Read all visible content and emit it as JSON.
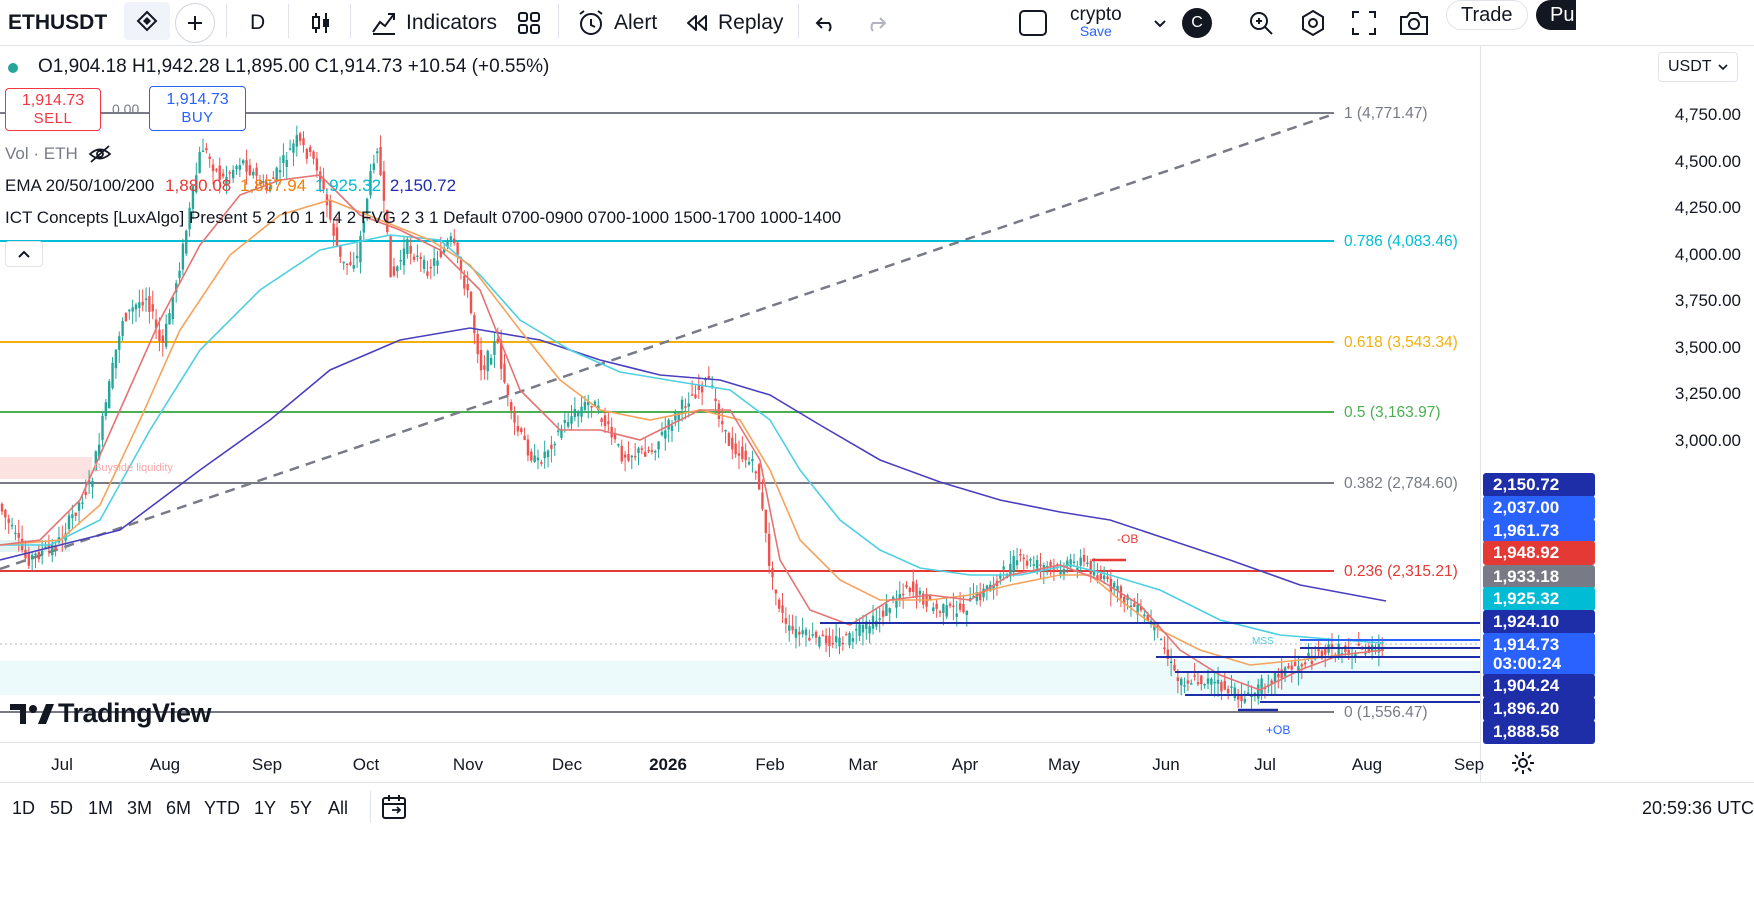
{
  "header": {
    "symbol": "ETHUSDT",
    "interval": "D",
    "indicators_label": "Indicators",
    "alert_label": "Alert",
    "replay_label": "Replay",
    "layout_name": "crypto",
    "layout_sub": "Save",
    "avatar_letter": "C",
    "trade_label": "Trade",
    "publish_label": "Pu"
  },
  "legend": {
    "ohlc": "O1,904.18 H1,942.28 L1,895.00 C1,914.73 +10.54 (+0.55%)",
    "sell_price": "1,914.73",
    "sell_label": "SELL",
    "spread": "0.00",
    "buy_price": "1,914.73",
    "buy_label": "BUY",
    "vol_label": "Vol · ETH",
    "ema_name": "EMA 20/50/100/200",
    "ema20": "1,880.08",
    "ema50": "1,857.94",
    "ema100": "1,925.32",
    "ema200": "2,150.72",
    "ict_label": "ICT Concepts [LuxAlgo] Present 5 2 10 1 1 4 2 FVG 2 3 1 Default 0700-0900 0700-1000 1500-1700 1000-1400"
  },
  "currency": "USDT",
  "price_axis": {
    "ticks": [
      "4,750.00",
      "4,500.00",
      "4,250.00",
      "4,000.00",
      "3,750.00",
      "3,500.00",
      "3,250.00",
      "3,000.00"
    ],
    "tags": [
      {
        "value": "2,150.72",
        "color": "#1e2ea8"
      },
      {
        "value": "2,037.00",
        "color": "#2962ff"
      },
      {
        "value": "1,961.73",
        "color": "#2962ff"
      },
      {
        "value": "1,948.92",
        "color": "#e53935"
      },
      {
        "value": "1,933.18",
        "color": "#787b86"
      },
      {
        "value": "1,925.32",
        "color": "#00bcd4"
      },
      {
        "value": "1,924.10",
        "color": "#1e2ea8"
      },
      {
        "value": "1,914.73",
        "color": "#2962ff"
      },
      {
        "value": "03:00:24",
        "color": "#2962ff"
      },
      {
        "value": "1,904.24",
        "color": "#1e2ea8"
      },
      {
        "value": "1,896.20",
        "color": "#1e2ea8"
      },
      {
        "value": "1,888.58",
        "color": "#1e2ea8"
      }
    ]
  },
  "fib_levels": [
    {
      "label": "1 (4,771.47)",
      "color": "#787b86"
    },
    {
      "label": "0.786 (4,083.46)",
      "color": "#00bcd4"
    },
    {
      "label": "0.618 (3,543.34)",
      "color": "#f2b00b"
    },
    {
      "label": "0.5 (3,163.97)",
      "color": "#4caf50"
    },
    {
      "label": "0.382 (2,784.60)",
      "color": "#787b86"
    },
    {
      "label": "0.236 (2,315.21)",
      "color": "#e53935"
    },
    {
      "label": "0 (1,556.47)",
      "color": "#787b86"
    }
  ],
  "annotations": {
    "buyside": "Buyside liquidity",
    "neg_ob": "-OB",
    "pos_ob": "+OB",
    "mss": "MSS"
  },
  "brand": "TradingView",
  "time_axis": [
    "Jul",
    "Aug",
    "Sep",
    "Oct",
    "Nov",
    "Dec",
    "2026",
    "Feb",
    "Mar",
    "Apr",
    "May",
    "Jun",
    "Jul",
    "Aug",
    "Sep"
  ],
  "ranges": [
    "1D",
    "5D",
    "1M",
    "3M",
    "6M",
    "YTD",
    "1Y",
    "5Y",
    "All"
  ],
  "clock": "20:59:36 UTC"
}
